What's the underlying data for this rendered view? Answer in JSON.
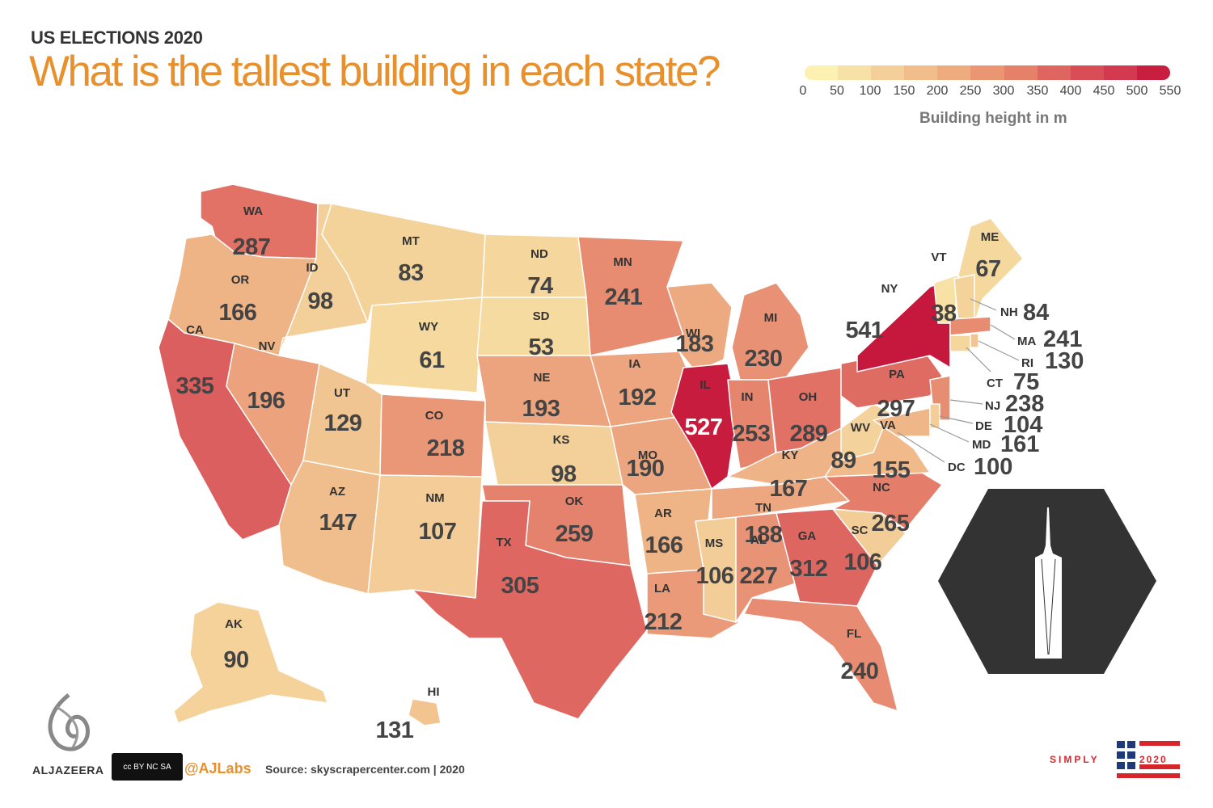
{
  "header": {
    "eyebrow": "US ELECTIONS 2020",
    "title": "What is the tallest building in each state?"
  },
  "legend": {
    "ticks": [
      "0",
      "50",
      "100",
      "150",
      "200",
      "250",
      "300",
      "350",
      "400",
      "450",
      "500",
      "550"
    ],
    "caption": "Building height in m",
    "colors": [
      "#fdf1b2",
      "#f8e1a7",
      "#f5cf99",
      "#f1bd8b",
      "#eeab7e",
      "#ea9673",
      "#e58069",
      "#df6660",
      "#d94d57",
      "#d43a4f",
      "#c81e3f"
    ]
  },
  "map_data": {
    "title": "What is the tallest building in each state?",
    "unit": "m",
    "states": [
      {
        "code": "WA",
        "value": 287
      },
      {
        "code": "OR",
        "value": 166
      },
      {
        "code": "CA",
        "value": 335
      },
      {
        "code": "ID",
        "value": 98
      },
      {
        "code": "NV",
        "value": 196
      },
      {
        "code": "MT",
        "value": 83
      },
      {
        "code": "WY",
        "value": 61
      },
      {
        "code": "UT",
        "value": 129
      },
      {
        "code": "AZ",
        "value": 147
      },
      {
        "code": "CO",
        "value": 218
      },
      {
        "code": "NM",
        "value": 107
      },
      {
        "code": "ND",
        "value": 74
      },
      {
        "code": "SD",
        "value": 53
      },
      {
        "code": "NE",
        "value": 193
      },
      {
        "code": "KS",
        "value": 98
      },
      {
        "code": "OK",
        "value": 259
      },
      {
        "code": "TX",
        "value": 305
      },
      {
        "code": "MN",
        "value": 241
      },
      {
        "code": "IA",
        "value": 192
      },
      {
        "code": "MO",
        "value": 190
      },
      {
        "code": "AR",
        "value": 166
      },
      {
        "code": "LA",
        "value": 212
      },
      {
        "code": "WI",
        "value": 183
      },
      {
        "code": "IL",
        "value": 527
      },
      {
        "code": "MI",
        "value": 230
      },
      {
        "code": "IN",
        "value": 253
      },
      {
        "code": "OH",
        "value": 289
      },
      {
        "code": "KY",
        "value": 167
      },
      {
        "code": "TN",
        "value": 188
      },
      {
        "code": "MS",
        "value": 106
      },
      {
        "code": "AL",
        "value": 227
      },
      {
        "code": "GA",
        "value": 312
      },
      {
        "code": "FL",
        "value": 240
      },
      {
        "code": "SC",
        "value": 106
      },
      {
        "code": "NC",
        "value": 265
      },
      {
        "code": "VA",
        "value": 155
      },
      {
        "code": "WV",
        "value": 89
      },
      {
        "code": "PA",
        "value": 297
      },
      {
        "code": "NY",
        "value": 541
      },
      {
        "code": "VT",
        "value": 38
      },
      {
        "code": "ME",
        "value": 67
      },
      {
        "code": "AK",
        "value": 90
      },
      {
        "code": "HI",
        "value": 131
      }
    ],
    "small_states": [
      {
        "code": "NH",
        "value": 84
      },
      {
        "code": "MA",
        "value": 241
      },
      {
        "code": "RI",
        "value": 130
      },
      {
        "code": "CT",
        "value": 75
      },
      {
        "code": "NJ",
        "value": 238
      },
      {
        "code": "DE",
        "value": 104
      },
      {
        "code": "MD",
        "value": 161
      },
      {
        "code": "DC",
        "value": 100
      }
    ]
  },
  "footer": {
    "brand": "ALJAZEERA",
    "license": "cc BY NC SA",
    "handle": "@AJLabs",
    "source": "Source: skyscrapercenter.com | 2020",
    "simply": "SIMPLY",
    "year": "2020"
  }
}
